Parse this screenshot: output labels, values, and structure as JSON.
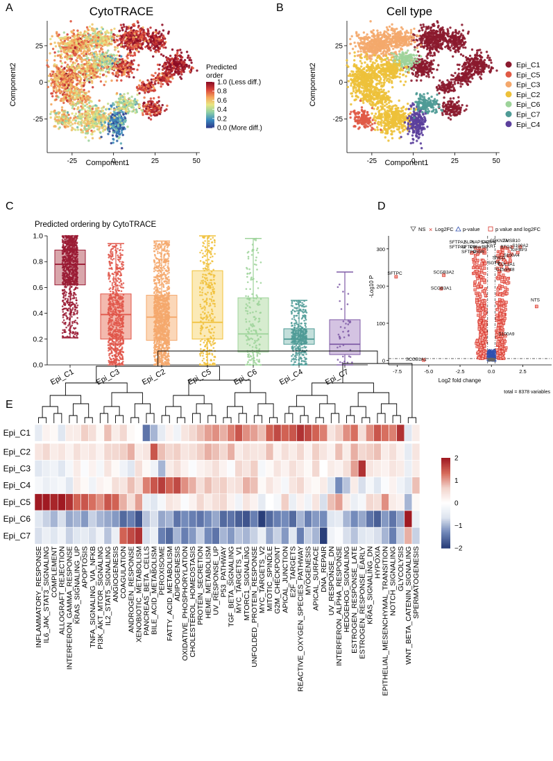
{
  "panels": {
    "A": {
      "letter": "A",
      "title": "CytoTRACE",
      "xlabel": "Component1",
      "ylabel": "Component2",
      "xticks": [
        -25,
        0,
        25,
        50
      ],
      "yticks": [
        -25,
        0,
        25
      ],
      "xlim": [
        -40,
        52
      ],
      "ylim": [
        -48,
        42
      ],
      "legend_title_lines": [
        "Predicted",
        "order"
      ],
      "legend_ticks": [
        {
          "value": 1.0,
          "label": "1.0 (Less diff.)"
        },
        {
          "value": 0.8,
          "label": "0.8"
        },
        {
          "value": 0.6,
          "label": "0.6"
        },
        {
          "value": 0.4,
          "label": "0.4"
        },
        {
          "value": 0.2,
          "label": "0.2"
        },
        {
          "value": 0.0,
          "label": "0.0 (More diff.)"
        }
      ],
      "colorscale": [
        "#2d3f8e",
        "#3b8cc0",
        "#8fd0a4",
        "#e8e682",
        "#f5a55b",
        "#d9443a",
        "#8c0c25"
      ]
    },
    "B": {
      "letter": "B",
      "title": "Cell type",
      "xlabel": "Component1",
      "ylabel": "Component2",
      "xticks": [
        -25,
        0,
        25,
        50
      ],
      "yticks": [
        -25,
        0,
        25
      ],
      "xlim": [
        -40,
        52
      ],
      "ylim": [
        -48,
        42
      ],
      "legend": [
        {
          "label": "Epi_C1",
          "color": "#8b1a2e"
        },
        {
          "label": "Epi_C5",
          "color": "#e05a46"
        },
        {
          "label": "Epi_C3",
          "color": "#f4a86c"
        },
        {
          "label": "Epi_C2",
          "color": "#edc13a"
        },
        {
          "label": "Epi_C6",
          "color": "#9dd39a"
        },
        {
          "label": "Epi_C7",
          "color": "#4f9b96"
        },
        {
          "label": "Epi_C4",
          "color": "#5b3f9c"
        }
      ]
    },
    "C": {
      "letter": "C",
      "title": "Predicted ordering by CytoTRACE"
    },
    "D": {
      "letter": "D"
    },
    "E": {
      "letter": "E"
    }
  },
  "chart_data": [
    {
      "type": "scatter",
      "panel": "A",
      "note": "tSNE embedding colored by CytoTRACE predicted order; clusters approximated",
      "clusters": [
        {
          "cx": 38,
          "cy": 12,
          "rx": 8,
          "ry": 7,
          "value": 0.96,
          "group": "Epi_C1"
        },
        {
          "cx": 12,
          "cy": 30,
          "rx": 10,
          "ry": 8,
          "value": 0.88,
          "group": "Epi_C1"
        },
        {
          "cx": 25,
          "cy": 28,
          "rx": 6,
          "ry": 6,
          "value": 0.92,
          "group": "Epi_C1"
        },
        {
          "cx": 20,
          "cy": -3,
          "rx": 5,
          "ry": 4,
          "value": 0.85,
          "group": "Epi_C1"
        },
        {
          "cx": 24,
          "cy": -18,
          "rx": 6,
          "ry": 5,
          "value": 0.9,
          "group": "Epi_C1"
        },
        {
          "cx": 5,
          "cy": 10,
          "rx": 7,
          "ry": 6,
          "value": 0.82,
          "group": "Epi_C1"
        },
        {
          "cx": 30,
          "cy": 3,
          "rx": 5,
          "ry": 4,
          "value": 0.86,
          "group": "Epi_C1"
        },
        {
          "cx": -22,
          "cy": 25,
          "rx": 12,
          "ry": 8,
          "value": 0.65,
          "group": "Epi_C3"
        },
        {
          "cx": -8,
          "cy": 30,
          "rx": 8,
          "ry": 6,
          "value": 0.55,
          "group": "Epi_C3"
        },
        {
          "cx": -30,
          "cy": 2,
          "rx": 8,
          "ry": 12,
          "value": 0.7,
          "group": "Epi_C2"
        },
        {
          "cx": -22,
          "cy": -10,
          "rx": 7,
          "ry": 6,
          "value": 0.6,
          "group": "Epi_C2"
        },
        {
          "cx": -12,
          "cy": -25,
          "rx": 10,
          "ry": 9,
          "value": 0.5,
          "group": "Epi_C2"
        },
        {
          "cx": -5,
          "cy": 15,
          "rx": 7,
          "ry": 5,
          "value": 0.4,
          "group": "Epi_C6"
        },
        {
          "cx": 2,
          "cy": -28,
          "rx": 5,
          "ry": 10,
          "value": 0.15,
          "group": "Epi_C4"
        },
        {
          "cx": -30,
          "cy": -25,
          "rx": 6,
          "ry": 6,
          "value": 0.55,
          "group": "Epi_C5"
        },
        {
          "cx": 8,
          "cy": -15,
          "rx": 6,
          "ry": 6,
          "value": 0.45,
          "group": "Epi_C7"
        },
        {
          "cx": -15,
          "cy": 8,
          "rx": 8,
          "ry": 7,
          "value": 0.6,
          "group": "Epi_C2"
        }
      ]
    },
    {
      "type": "box",
      "panel": "C",
      "title": "Predicted ordering by CytoTRACE",
      "ylim": [
        0,
        1
      ],
      "yticks": [
        0.0,
        0.2,
        0.4,
        0.6,
        0.8,
        1.0
      ],
      "categories": [
        "Epi_C1",
        "Epi_C3",
        "Epi_C2",
        "Epi_C5",
        "Epi_C6",
        "Epi_C4",
        "Epi_C7"
      ],
      "colors": [
        "#9a1b34",
        "#e0564a",
        "#f4a86c",
        "#f0c03a",
        "#9dd39a",
        "#4f9b96",
        "#7e5aa6"
      ],
      "fills": [
        "#d9a6ab",
        "#f3b9ae",
        "#fbd7b8",
        "#fbeab7",
        "#d6eccf",
        "#c3dfdb",
        "#d4c3e2"
      ],
      "stats": [
        {
          "min": 0.21,
          "q1": 0.62,
          "median": 0.78,
          "q3": 0.89,
          "max": 1.0,
          "n": 900
        },
        {
          "min": 0.0,
          "q1": 0.2,
          "median": 0.39,
          "q3": 0.55,
          "max": 0.94,
          "n": 700
        },
        {
          "min": 0.0,
          "q1": 0.19,
          "median": 0.37,
          "q3": 0.54,
          "max": 0.96,
          "n": 1200
        },
        {
          "min": 0.0,
          "q1": 0.2,
          "median": 0.33,
          "q3": 0.73,
          "max": 1.0,
          "n": 300
        },
        {
          "min": 0.0,
          "q1": 0.1,
          "median": 0.24,
          "q3": 0.52,
          "max": 0.98,
          "n": 180
        },
        {
          "min": 0.0,
          "q1": 0.16,
          "median": 0.2,
          "q3": 0.28,
          "max": 0.5,
          "n": 400
        },
        {
          "min": 0.0,
          "q1": 0.08,
          "median": 0.16,
          "q3": 0.35,
          "max": 0.72,
          "n": 40
        }
      ]
    },
    {
      "type": "scatter",
      "panel": "D",
      "subtype": "volcano",
      "xlabel": "Log2 fold change",
      "ylabel": "-Log10 P",
      "xlim": [
        -8.2,
        4.8
      ],
      "ylim": [
        -12,
        335
      ],
      "xticks": [
        -7.5,
        -5.0,
        -2.5,
        0.0,
        2.5
      ],
      "yticks": [
        0,
        100,
        200,
        300
      ],
      "legend": [
        "NS",
        "Log2FC",
        "p-value",
        "p value and log2FC"
      ],
      "footnote": "total = 8378 variables",
      "labels": [
        {
          "text": "SFTPA2",
          "x": -2.7,
          "y": 309
        },
        {
          "text": "SLPI",
          "x": -1.8,
          "y": 309
        },
        {
          "text": "NAPSA",
          "x": -1.0,
          "y": 309
        },
        {
          "text": "C4BPA",
          "x": -0.2,
          "y": 309
        },
        {
          "text": "SFTPA1",
          "x": -2.7,
          "y": 296
        },
        {
          "text": "SFTPB",
          "x": -1.8,
          "y": 296
        },
        {
          "text": "C16orf89",
          "x": -1.0,
          "y": 296
        },
        {
          "text": "SFTPD",
          "x": -1.8,
          "y": 283
        },
        {
          "text": "PIGR",
          "x": -1.0,
          "y": 283
        },
        {
          "text": "CDKN2A",
          "x": 0.6,
          "y": 313
        },
        {
          "text": "TMSB10",
          "x": 1.6,
          "y": 313
        },
        {
          "text": "KRT",
          "x": 0.0,
          "y": 298
        },
        {
          "text": "BTG2",
          "x": 1.2,
          "y": 296
        },
        {
          "text": "S100A2",
          "x": 2.3,
          "y": 300
        },
        {
          "text": "IGFBP3",
          "x": 2.2,
          "y": 288
        },
        {
          "text": "S100A4",
          "x": 1.6,
          "y": 273
        },
        {
          "text": "SNCG",
          "x": 0.6,
          "y": 267
        },
        {
          "text": "SGTB",
          "x": 0.2,
          "y": 253
        },
        {
          "text": "COL1A1",
          "x": 1.2,
          "y": 249
        },
        {
          "text": "C15orf48",
          "x": 1.1,
          "y": 235
        },
        {
          "text": "SFTPC",
          "x": -7.7,
          "y": 225
        },
        {
          "text": "SCGB3A2",
          "x": -3.8,
          "y": 228
        },
        {
          "text": "SCGB3A1",
          "x": -4.0,
          "y": 185
        },
        {
          "text": "NTS",
          "x": 3.5,
          "y": 153
        },
        {
          "text": "S100A9",
          "x": 1.2,
          "y": 62
        },
        {
          "text": "SCGB1A1",
          "x": -6.0,
          "y": -6
        }
      ],
      "highlight_points": [
        {
          "x": -7.6,
          "y": 225
        },
        {
          "x": -3.8,
          "y": 229
        },
        {
          "x": -4.0,
          "y": 193
        },
        {
          "x": -5.4,
          "y": 1
        },
        {
          "x": 3.6,
          "y": 145
        },
        {
          "x": 1.1,
          "y": 66
        },
        {
          "x": 2.3,
          "y": 305
        },
        {
          "x": 2.1,
          "y": 290
        },
        {
          "x": 1.5,
          "y": 268
        }
      ]
    },
    {
      "type": "heatmap",
      "panel": "E",
      "rows": [
        "Epi_C1",
        "Epi_C2",
        "Epi_C3",
        "Epi_C4",
        "Epi_C5",
        "Epi_C6",
        "Epi_C7"
      ],
      "columns": [
        "INFLAMMATORY_RESPONSE",
        "IL6_JAK_STAT3_SIGNALING",
        "COMPLEMENT",
        "ALLOGRAFT_REJECTION",
        "INTERFERON_GAMMA_RESPONSE",
        "KRAS_SIGNALING_UP",
        "APOPTOSIS",
        "TNFA_SIGNALING_VIA_NFKB",
        "PI3K_AKT_MTOR_SIGNALING",
        "IL2_STAT5_SIGNALING",
        "ANGIOGENESIS",
        "COAGULATION",
        "ANDROGEN_RESPONSE",
        "XENOBIOTIC_METABOLISM",
        "PANCREAS_BETA_CELLS",
        "BILE_ACID_METABOLISM",
        "PEROXISOME",
        "FATTY_ACID_METABOLISM",
        "ADIPOGENESIS",
        "OXIDATIVE_PHOSPHORYLATION",
        "CHOLESTEROL_HOMEOSTASIS",
        "PROTEIN_SECRETION",
        "HEME_METABOLISM",
        "UV_RESPONSE_UP",
        "P53_PATHWAY",
        "TGF_BETA_SIGNALING",
        "MYC_TARGETS_V1",
        "MTORC1_SIGNALING",
        "UNFOLDED_PROTEIN_RESPONSE",
        "MYC_TARGETS_V2",
        "MITOTIC_SPINDLE",
        "G2M_CHECKPOINT",
        "APICAL_JUNCTION",
        "E2F_TARGETS",
        "REACTIVE_OXYGEN_SPECIES_PATHWAY",
        "MYOGENESIS",
        "APICAL_SURFACE",
        "DNA_REPAIR",
        "UV_RESPONSE_DN",
        "INTERFERON_ALPHA_RESPONSE",
        "HEDGEHOG_SIGNALING",
        "ESTROGEN_RESPONSE_LATE",
        "ESTROGEN_RESPONSE_EARLY",
        "KRAS_SIGNALING_DN",
        "HYPOXIA",
        "EPITHELIAL_MESENCHYMAL_TRANSITION",
        "NOTCH_SIGNALING",
        "GLYCOLYSIS",
        "WNT_BETA_CATENIN_SIGNALING",
        "SPERMATOGENESIS"
      ],
      "colorbar": {
        "min": -2,
        "max": 2,
        "ticks": [
          2,
          1,
          0,
          -1,
          -2
        ],
        "colors": [
          "#2a3f7a",
          "#ffffff",
          "#a01a22"
        ]
      },
      "values": [
        [
          -0.5,
          0.2,
          0.1,
          -0.6,
          0.3,
          0.3,
          0.7,
          0.5,
          0.1,
          0.8,
          0.3,
          0.6,
          0.1,
          0.0,
          -1.5,
          -1.0,
          -0.5,
          0.2,
          -0.3,
          0.4,
          0.6,
          0.8,
          1.0,
          1.1,
          0.9,
          1.2,
          1.5,
          1.1,
          1.0,
          0.8,
          1.4,
          1.6,
          1.4,
          1.5,
          1.8,
          1.6,
          1.4,
          1.2,
          0.4,
          0.7,
          1.1,
          1.3,
          0.5,
          1.1,
          1.5,
          1.3,
          1.2,
          1.8,
          -0.6,
          0.3
        ],
        [
          0.4,
          0.6,
          0.3,
          0.4,
          0.2,
          0.5,
          0.3,
          0.4,
          0.2,
          0.6,
          0.6,
          0.7,
          0.9,
          0.3,
          0.4,
          1.5,
          0.8,
          0.6,
          0.7,
          0.4,
          0.5,
          0.7,
          0.9,
          0.8,
          0.6,
          0.9,
          0.3,
          0.5,
          0.4,
          0.4,
          0.8,
          0.2,
          0.5,
          0.3,
          0.6,
          0.2,
          0.7,
          0.4,
          0.2,
          0.8,
          0.3,
          0.9,
          0.6,
          0.7,
          0.8,
          0.3,
          0.5,
          0.2,
          -0.5,
          0.4
        ],
        [
          -0.6,
          -0.4,
          -0.3,
          -0.6,
          -0.2,
          0.3,
          -0.1,
          0.2,
          -0.2,
          0.4,
          0.1,
          -0.3,
          -0.6,
          0.5,
          0.1,
          -0.3,
          -1.0,
          0.3,
          0.5,
          0.2,
          -0.1,
          0.2,
          0.3,
          0.5,
          0.2,
          -0.1,
          0.6,
          0.4,
          0.7,
          -0.2,
          0.1,
          0.4,
          0.2,
          0.5,
          0.3,
          0.1,
          0.6,
          0.0,
          0.3,
          0.2,
          0.5,
          1.0,
          1.8,
          0.4,
          0.3,
          0.2,
          0.4,
          0.3,
          -0.4,
          0.3
        ],
        [
          -0.2,
          -0.4,
          -0.3,
          -0.2,
          -0.6,
          0.3,
          0.1,
          -0.3,
          0.2,
          0.1,
          0.5,
          0.4,
          0.8,
          0.5,
          1.2,
          1.5,
          1.7,
          1.4,
          1.6,
          1.1,
          0.9,
          0.5,
          0.8,
          0.6,
          0.7,
          0.4,
          0.5,
          0.9,
          0.8,
          0.1,
          0.4,
          0.2,
          -0.2,
          0.4,
          0.6,
          0.2,
          0.1,
          0.3,
          -0.6,
          -1.3,
          -0.9,
          0.3,
          -0.7,
          -0.2,
          -0.6,
          -0.1,
          0.2,
          -0.3,
          -0.6,
          0.8
        ],
        [
          2.0,
          2.1,
          1.9,
          2.0,
          1.8,
          1.4,
          1.5,
          1.3,
          1.1,
          1.5,
          1.4,
          0.9,
          0.5,
          1.0,
          -0.4,
          -0.6,
          -0.2,
          0.4,
          0.3,
          -0.1,
          0.2,
          0.6,
          0.3,
          0.5,
          0.6,
          0.2,
          -0.3,
          0.4,
          0.2,
          -0.5,
          0.0,
          -0.2,
          0.7,
          -0.4,
          0.2,
          -0.3,
          0.4,
          -0.7,
          0.8,
          1.0,
          0.3,
          -0.4,
          -0.2,
          0.6,
          0.5,
          1.1,
          0.3,
          0.2,
          -1.0,
          0.1
        ],
        [
          -0.6,
          -0.8,
          -1.0,
          -0.7,
          -1.1,
          -1.0,
          -1.2,
          -0.8,
          -1.0,
          -1.1,
          -1.2,
          -1.6,
          -1.4,
          -1.8,
          -0.9,
          -0.7,
          -1.1,
          -1.0,
          -1.5,
          -1.3,
          -1.4,
          -1.5,
          -1.3,
          -1.1,
          -1.6,
          -1.5,
          -1.7,
          -1.8,
          -1.4,
          -2.0,
          -1.6,
          -1.4,
          -1.3,
          -1.6,
          -1.0,
          -1.4,
          -1.2,
          -1.3,
          -0.6,
          -0.5,
          -1.0,
          -1.3,
          -1.1,
          -1.5,
          -1.7,
          -1.2,
          -1.5,
          -1.1,
          2.2,
          -0.4
        ],
        [
          -0.7,
          -0.4,
          -0.6,
          -0.3,
          -0.8,
          -0.6,
          -0.5,
          -0.7,
          -0.3,
          -0.9,
          -0.4,
          1.4,
          1.6,
          1.8,
          -0.7,
          -0.4,
          -1.4,
          -1.6,
          -1.0,
          -1.4,
          -1.2,
          -0.8,
          -1.3,
          -1.5,
          -1.0,
          -1.2,
          -0.9,
          -1.0,
          -0.8,
          -0.4,
          -1.1,
          -0.8,
          -1.2,
          -0.6,
          -1.4,
          -0.8,
          -1.0,
          -2.1,
          -0.3,
          -0.1,
          -0.7,
          -0.9,
          -0.6,
          -0.5,
          -0.7,
          -1.0,
          -1.4,
          -0.8,
          0.9,
          -0.8
        ]
      ]
    }
  ]
}
